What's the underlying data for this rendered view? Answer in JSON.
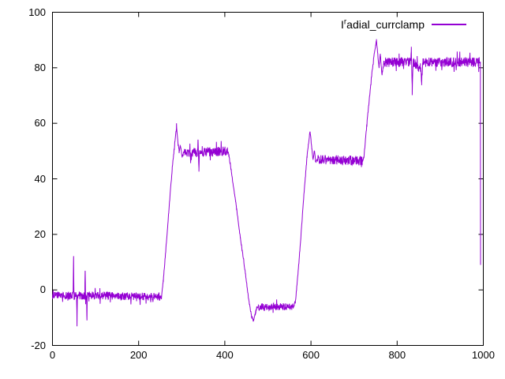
{
  "legend": {
    "prefix": "I",
    "superscript": "r",
    "rest": "adial_currclamp"
  },
  "colors": {
    "line": "#9400d3",
    "axis": "#000000",
    "background": "#ffffff",
    "text": "#000000"
  },
  "chart_data": {
    "type": "line",
    "title": "",
    "series": [
      {
        "name": "I^radial_currclamp",
        "color": "#9400d3"
      }
    ],
    "xlim": [
      0,
      1000
    ],
    "ylim": [
      -20,
      100
    ],
    "xticks": [
      0,
      200,
      400,
      600,
      800,
      1000
    ],
    "yticks": [
      -20,
      0,
      20,
      40,
      60,
      80,
      100
    ],
    "grid": false,
    "border": "full-box-mirrored-ticks",
    "legend_position": "top-right-inside",
    "waveform": {
      "description": "Noisy stepped current signal: baseline ~-2 from x=0-250 with bipolar spike pairs near x=50 and x=78; ramp to peak 59 at x=288 then plateau ~49.5 until x=408 with spike at x=339; descent to minimum -11.5 at x=466 then valley plateau ~-6 until x=560; ramp to peak 57 at x=598 then plateau ~46.5 until x=722; ramp to peak 90 at x=752 then plateau ~82 until x=993 with bipolar spike at x=834 and dip at x=857; final vertical drop to ~9 at x=994.",
      "noise_amplitude_units": 1.7,
      "seed": 987654321,
      "anchors": [
        [
          0,
          -2
        ],
        [
          48,
          -2
        ],
        [
          49,
          12
        ],
        [
          50,
          -4
        ],
        [
          52,
          -2
        ],
        [
          56,
          -2
        ],
        [
          57,
          -12.5
        ],
        [
          58,
          -2
        ],
        [
          75,
          -2
        ],
        [
          76,
          7.5
        ],
        [
          77,
          -3
        ],
        [
          79,
          -2
        ],
        [
          80,
          -10
        ],
        [
          81,
          -2
        ],
        [
          250,
          -2.5
        ],
        [
          253,
          -3
        ],
        [
          257,
          3
        ],
        [
          263,
          14
        ],
        [
          270,
          28
        ],
        [
          278,
          44
        ],
        [
          284,
          53
        ],
        [
          288,
          59
        ],
        [
          291,
          53
        ],
        [
          294,
          50
        ],
        [
          297,
          52
        ],
        [
          301,
          48
        ],
        [
          305,
          49.5
        ],
        [
          337,
          49.5
        ],
        [
          338,
          55
        ],
        [
          340,
          43.5
        ],
        [
          341,
          49.5
        ],
        [
          406,
          50
        ],
        [
          409,
          49
        ],
        [
          415,
          43
        ],
        [
          425,
          32
        ],
        [
          436,
          19
        ],
        [
          448,
          6
        ],
        [
          456,
          -4
        ],
        [
          462,
          -9.5
        ],
        [
          466,
          -11.5
        ],
        [
          470,
          -9
        ],
        [
          474,
          -6.2
        ],
        [
          560,
          -6
        ],
        [
          564,
          -4
        ],
        [
          570,
          6
        ],
        [
          577,
          20
        ],
        [
          584,
          35
        ],
        [
          591,
          48
        ],
        [
          596,
          55
        ],
        [
          598,
          57
        ],
        [
          602,
          51
        ],
        [
          605,
          47
        ],
        [
          608,
          50
        ],
        [
          611,
          46
        ],
        [
          615,
          47
        ],
        [
          720,
          46.5
        ],
        [
          723,
          48
        ],
        [
          727,
          55
        ],
        [
          733,
          65
        ],
        [
          740,
          76
        ],
        [
          746,
          84
        ],
        [
          750,
          88
        ],
        [
          752,
          90
        ],
        [
          755,
          85
        ],
        [
          758,
          80
        ],
        [
          761,
          85
        ],
        [
          765,
          77
        ],
        [
          769,
          82
        ],
        [
          831,
          82
        ],
        [
          833,
          88.5
        ],
        [
          835,
          71.5
        ],
        [
          837,
          82
        ],
        [
          854,
          80
        ],
        [
          857,
          75
        ],
        [
          860,
          82
        ],
        [
          992,
          82
        ],
        [
          993.2,
          82
        ],
        [
          993.6,
          9
        ]
      ],
      "noise_regions": [
        {
          "x0": 0,
          "x1": 249.5,
          "amp": 1.4
        },
        {
          "x0": 249.5,
          "x1": 305,
          "amp": 0.5
        },
        {
          "x0": 306,
          "x1": 406,
          "amp": 1.7
        },
        {
          "x0": 406,
          "x1": 476,
          "amp": 0.5
        },
        {
          "x0": 477,
          "x1": 559,
          "amp": 1.3
        },
        {
          "x0": 559,
          "x1": 616,
          "amp": 0.5
        },
        {
          "x0": 616,
          "x1": 719,
          "amp": 1.7
        },
        {
          "x0": 719,
          "x1": 770,
          "amp": 0.5
        },
        {
          "x0": 770,
          "x1": 992,
          "amp": 1.7
        },
        {
          "x0": 992,
          "x1": 994,
          "amp": 0
        }
      ]
    }
  }
}
